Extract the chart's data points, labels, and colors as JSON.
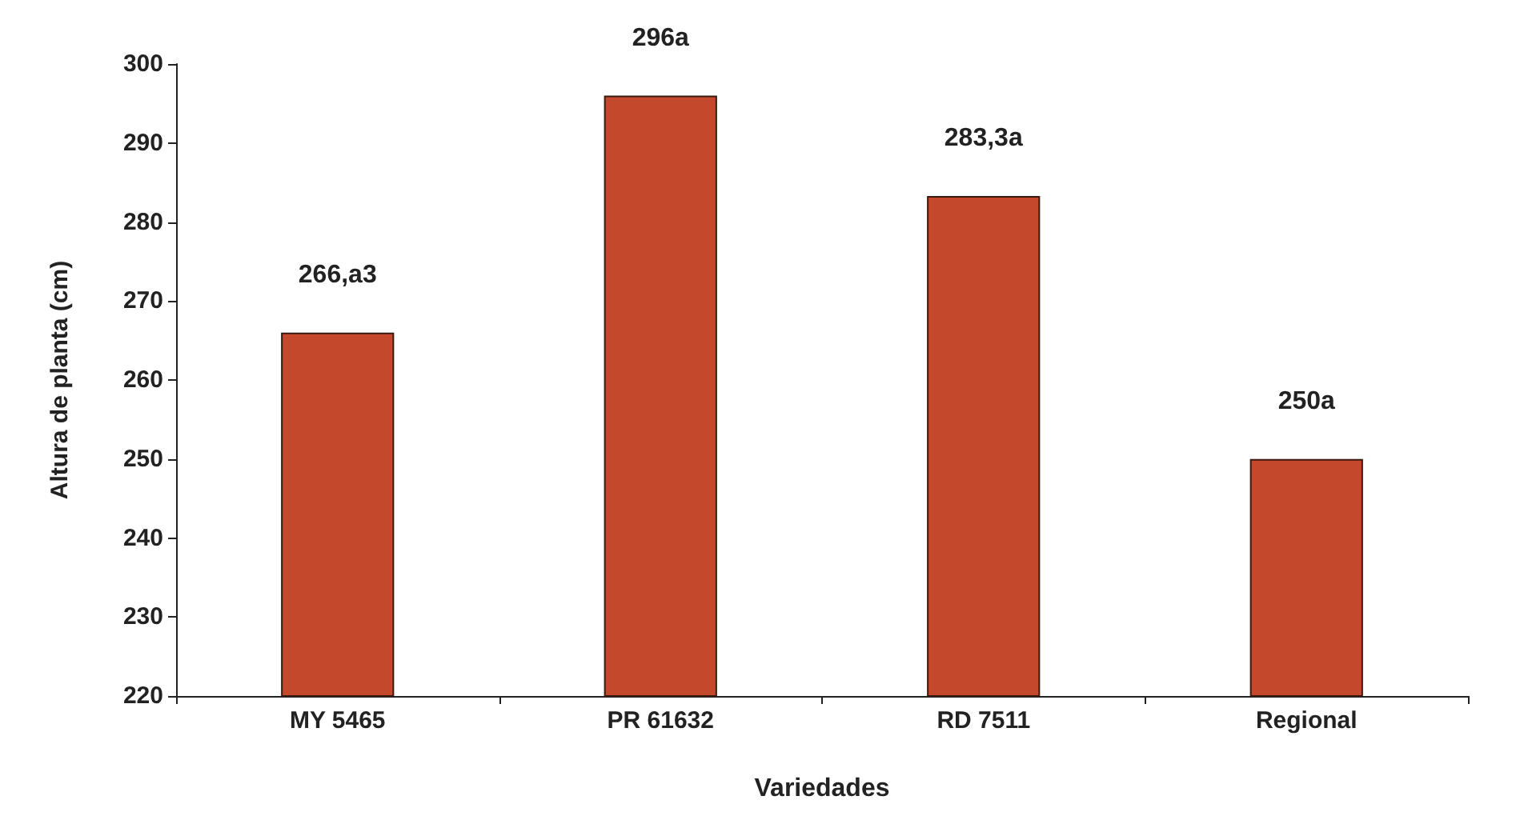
{
  "chart_data": {
    "type": "bar",
    "xlabel": "Variedades",
    "ylabel": "Altura de planta (cm)",
    "categories": [
      "MY 5465",
      "PR 61632",
      "RD 7511",
      "Regional"
    ],
    "values": [
      266,
      296,
      283.3,
      250
    ],
    "value_labels": [
      "266,a3",
      "296a",
      "283,3a",
      "250a"
    ],
    "color": "#c4492c",
    "ylim": [
      220,
      300
    ],
    "yticks": [
      220,
      230,
      240,
      250,
      260,
      270,
      280,
      290,
      300
    ],
    "grid": false
  }
}
